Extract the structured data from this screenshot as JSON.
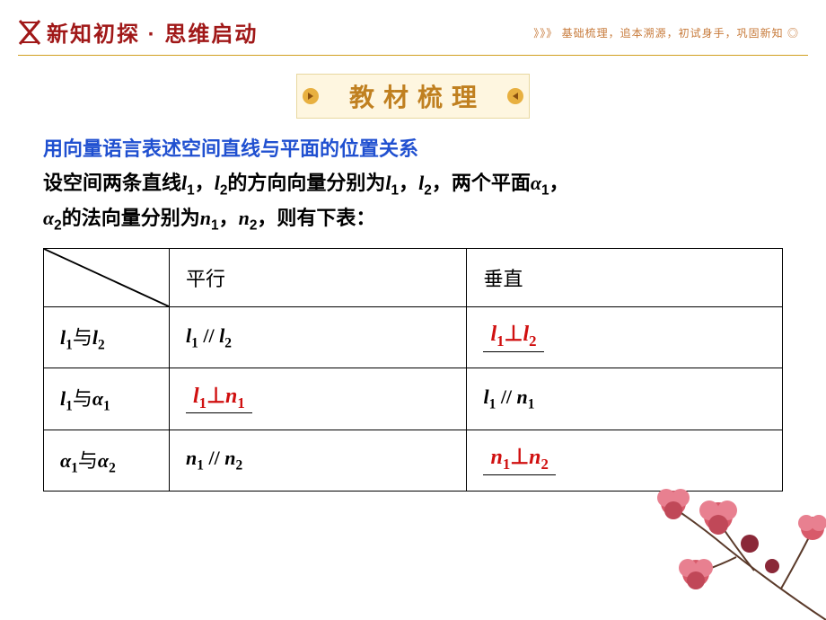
{
  "header": {
    "title": "新知初探 · 思维启动",
    "logo_color": "#a01818",
    "subtitle_prefix": "》》》",
    "subtitle": "基础梳理，追本溯源，初试身手，巩固新知 ◎",
    "divider_color": "#d0a020"
  },
  "banner": {
    "text": "教材梳理",
    "bg_color": "#fef6e0",
    "text_color": "#c08020",
    "arrow_color": "#e8b040"
  },
  "subtitle": {
    "text": "用向量语言表述空间直线与平面的位置关系",
    "color": "#2050d0"
  },
  "description": {
    "prefix": "设空间两条直线",
    "l1": "l",
    "l1_sub": "1",
    "comma1": "，",
    "l2": "l",
    "l2_sub": "2",
    "mid1": "的方向向量分别为",
    "mid2": "，两个平面",
    "a1": "α",
    "a1_sub": "1",
    "comma2": "，",
    "a2": "α",
    "a2_sub": "2",
    "mid3": "的法向量分别为",
    "n1": "n",
    "n1_sub": "1",
    "comma3": "，",
    "n2": "n",
    "n2_sub": "2",
    "suffix": "，则有下表："
  },
  "table": {
    "headers": {
      "col1": "",
      "col2": "平行",
      "col3": "垂直"
    },
    "rows": [
      {
        "label": {
          "a": "l",
          "a_sub": "1",
          "conj": "与",
          "b": "l",
          "b_sub": "2"
        },
        "parallel": {
          "type": "math",
          "a": "l",
          "a_sub": "1",
          "op": " // ",
          "b": "l",
          "b_sub": "2"
        },
        "perp": {
          "type": "answer",
          "a": "l",
          "a_sub": "1",
          "op": "⊥",
          "b": "l",
          "b_sub": "2"
        }
      },
      {
        "label": {
          "a": "l",
          "a_sub": "1",
          "conj": "与",
          "b": "α",
          "b_sub": "1"
        },
        "parallel": {
          "type": "answer",
          "a": "l",
          "a_sub": "1",
          "op": "⊥",
          "b": "n",
          "b_sub": "1"
        },
        "perp": {
          "type": "math",
          "a": "l",
          "a_sub": "1",
          "op": " // ",
          "b": "n",
          "b_sub": "1"
        }
      },
      {
        "label": {
          "a": "α",
          "a_sub": "1",
          "conj": "与",
          "b": "α",
          "b_sub": "2"
        },
        "parallel": {
          "type": "math",
          "a": "n",
          "a_sub": "1",
          "op": " // ",
          "b": "n",
          "b_sub": "2"
        },
        "perp": {
          "type": "answer",
          "a": "n",
          "a_sub": "1",
          "op": "⊥",
          "b": "n",
          "b_sub": "2"
        }
      }
    ]
  },
  "colors": {
    "answer": "#d01010",
    "black": "#000000",
    "flower_pink": "#d85a6a",
    "flower_dark": "#8a2838",
    "branch": "#5a3a2a"
  }
}
